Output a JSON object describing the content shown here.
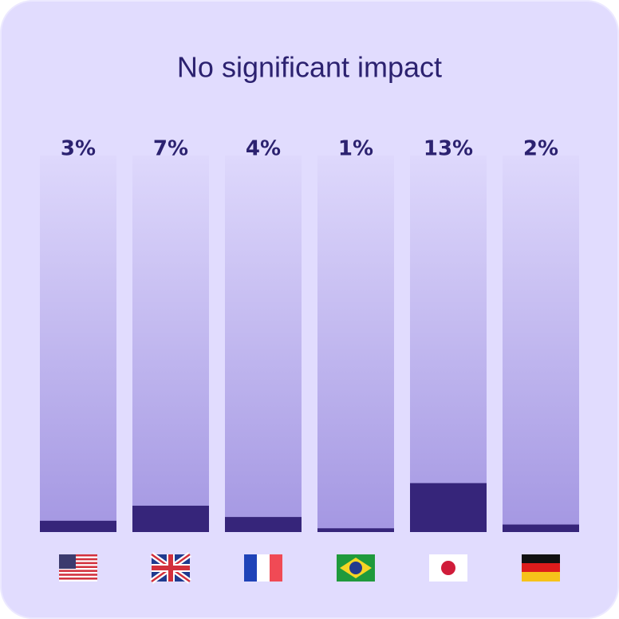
{
  "chart_data": {
    "type": "bar",
    "title": "No significant impact",
    "categories": [
      null,
      null,
      null,
      null,
      null,
      null
    ],
    "values": [
      3,
      7,
      4,
      1,
      13,
      2
    ],
    "value_labels": [
      "3%",
      "7%",
      "4%",
      "1%",
      "13%",
      "2%"
    ],
    "color": "#36257a",
    "ylim": [
      0,
      100
    ]
  }
}
